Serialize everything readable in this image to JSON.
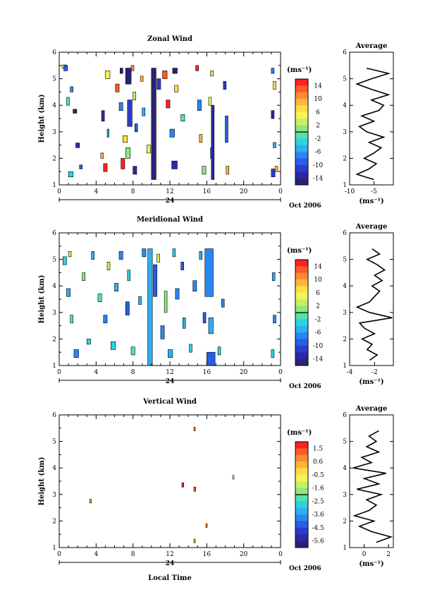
{
  "chart_data": [
    {
      "type": "heatmap",
      "title": "Zonal Wind",
      "ylabel": "Height (km)",
      "ylim": [
        1,
        6
      ],
      "yticks": [
        "1",
        "2",
        "3",
        "4",
        "5",
        "6"
      ],
      "xlim": [
        0,
        24
      ],
      "xticks": [
        "0",
        "4",
        "8",
        "12",
        "16",
        "20",
        "0"
      ],
      "date_marker": "24",
      "date_label": "Oct 2006",
      "colorbar": {
        "units": "(ms⁻¹)",
        "ticks": [
          "14",
          "10",
          "6",
          "2",
          "-2",
          "-6",
          "-10",
          "-14"
        ],
        "colors": [
          "#ff2020",
          "#ff5a28",
          "#ff8a30",
          "#ffb63a",
          "#ffde45",
          "#f4f455",
          "#c6f062",
          "#8ee87a",
          "#55e0b0",
          "#2fd2dc",
          "#2cb0f0",
          "#2a86f0",
          "#2a5ee6",
          "#2b3ccc",
          "#2a2aa8",
          "#2a2276"
        ]
      },
      "blocks": [
        {
          "x": 0.3,
          "y": 5.4,
          "w": 0.5,
          "h": 0.12,
          "c": "#f4f455"
        },
        {
          "x": 0.5,
          "y": 5.3,
          "w": 0.4,
          "h": 0.2,
          "c": "#2a5ee6"
        },
        {
          "x": 1.2,
          "y": 4.5,
          "w": 0.3,
          "h": 0.2,
          "c": "#2a86f0"
        },
        {
          "x": 1.5,
          "y": 3.7,
          "w": 0.4,
          "h": 0.15,
          "c": "#2a2276"
        },
        {
          "x": 0.8,
          "y": 4.0,
          "w": 0.3,
          "h": 0.3,
          "c": "#55e0b0"
        },
        {
          "x": 1.8,
          "y": 2.4,
          "w": 0.4,
          "h": 0.18,
          "c": "#2a2aa8"
        },
        {
          "x": 1.0,
          "y": 1.3,
          "w": 0.5,
          "h": 0.2,
          "c": "#2fd2dc"
        },
        {
          "x": 2.2,
          "y": 1.6,
          "w": 0.3,
          "h": 0.15,
          "c": "#2a5ee6"
        },
        {
          "x": 4.5,
          "y": 2.0,
          "w": 0.3,
          "h": 0.2,
          "c": "#ffb63a"
        },
        {
          "x": 4.8,
          "y": 1.5,
          "w": 0.4,
          "h": 0.3,
          "c": "#ff2020"
        },
        {
          "x": 5.0,
          "y": 5.0,
          "w": 0.5,
          "h": 0.3,
          "c": "#f4f455"
        },
        {
          "x": 4.6,
          "y": 3.4,
          "w": 0.3,
          "h": 0.4,
          "c": "#2a2aa8"
        },
        {
          "x": 5.2,
          "y": 2.8,
          "w": 0.2,
          "h": 0.3,
          "c": "#2cb0f0"
        },
        {
          "x": 6.1,
          "y": 4.5,
          "w": 0.4,
          "h": 0.3,
          "c": "#ff5a28"
        },
        {
          "x": 6.6,
          "y": 5.2,
          "w": 0.3,
          "h": 0.2,
          "c": "#2a2276"
        },
        {
          "x": 6.5,
          "y": 3.8,
          "w": 0.4,
          "h": 0.3,
          "c": "#2a86f0"
        },
        {
          "x": 6.9,
          "y": 2.6,
          "w": 0.5,
          "h": 0.25,
          "c": "#ffde45"
        },
        {
          "x": 6.7,
          "y": 1.6,
          "w": 0.4,
          "h": 0.4,
          "c": "#ff2020"
        },
        {
          "x": 7.2,
          "y": 4.8,
          "w": 0.6,
          "h": 0.6,
          "c": "#2a2276"
        },
        {
          "x": 7.4,
          "y": 3.2,
          "w": 0.5,
          "h": 1.0,
          "c": "#2b3ccc"
        },
        {
          "x": 7.2,
          "y": 2.0,
          "w": 0.5,
          "h": 0.4,
          "c": "#8ee87a"
        },
        {
          "x": 7.8,
          "y": 5.3,
          "w": 0.3,
          "h": 0.2,
          "c": "#ff8a30"
        },
        {
          "x": 8.0,
          "y": 4.2,
          "w": 0.3,
          "h": 0.3,
          "c": "#c6f062"
        },
        {
          "x": 8.2,
          "y": 3.0,
          "w": 0.3,
          "h": 0.3,
          "c": "#2a5ee6"
        },
        {
          "x": 8.0,
          "y": 1.4,
          "w": 0.4,
          "h": 0.3,
          "c": "#2a2aa8"
        },
        {
          "x": 8.8,
          "y": 4.9,
          "w": 0.3,
          "h": 0.2,
          "c": "#ffb63a"
        },
        {
          "x": 9.0,
          "y": 3.6,
          "w": 0.3,
          "h": 0.3,
          "c": "#2cb0f0"
        },
        {
          "x": 9.5,
          "y": 2.2,
          "w": 0.4,
          "h": 0.3,
          "c": "#f4f455"
        },
        {
          "x": 10.0,
          "y": 1.2,
          "w": 0.5,
          "h": 4.2,
          "c": "#2a2276"
        },
        {
          "x": 10.6,
          "y": 4.6,
          "w": 0.4,
          "h": 0.4,
          "c": "#2b3ccc"
        },
        {
          "x": 11.2,
          "y": 5.0,
          "w": 0.5,
          "h": 0.3,
          "c": "#ff5a28"
        },
        {
          "x": 11.6,
          "y": 3.9,
          "w": 0.4,
          "h": 0.3,
          "c": "#ff2020"
        },
        {
          "x": 12.0,
          "y": 2.8,
          "w": 0.5,
          "h": 0.3,
          "c": "#2a86f0"
        },
        {
          "x": 12.2,
          "y": 1.6,
          "w": 0.6,
          "h": 0.3,
          "c": "#2a2aa8"
        },
        {
          "x": 12.3,
          "y": 5.2,
          "w": 0.5,
          "h": 0.2,
          "c": "#2a2276"
        },
        {
          "x": 12.5,
          "y": 4.5,
          "w": 0.4,
          "h": 0.25,
          "c": "#ffde45"
        },
        {
          "x": 13.2,
          "y": 3.4,
          "w": 0.4,
          "h": 0.25,
          "c": "#55e0b0"
        },
        {
          "x": 14.8,
          "y": 5.3,
          "w": 0.3,
          "h": 0.2,
          "c": "#ff2020"
        },
        {
          "x": 15.0,
          "y": 3.8,
          "w": 0.4,
          "h": 0.4,
          "c": "#2a86f0"
        },
        {
          "x": 15.2,
          "y": 2.6,
          "w": 0.3,
          "h": 0.3,
          "c": "#ffb63a"
        },
        {
          "x": 15.5,
          "y": 1.4,
          "w": 0.4,
          "h": 0.3,
          "c": "#8ee87a"
        },
        {
          "x": 16.2,
          "y": 4.0,
          "w": 0.3,
          "h": 0.3,
          "c": "#f4f455"
        },
        {
          "x": 16.4,
          "y": 5.1,
          "w": 0.3,
          "h": 0.2,
          "c": "#c6f062"
        },
        {
          "x": 16.4,
          "y": 2.0,
          "w": 0.3,
          "h": 0.4,
          "c": "#2cb0f0"
        },
        {
          "x": 16.5,
          "y": 1.2,
          "w": 0.3,
          "h": 2.8,
          "c": "#2a2aa8"
        },
        {
          "x": 17.8,
          "y": 4.6,
          "w": 0.3,
          "h": 0.3,
          "c": "#2b3ccc"
        },
        {
          "x": 18.0,
          "y": 2.6,
          "w": 0.3,
          "h": 1.0,
          "c": "#2a5ee6"
        },
        {
          "x": 18.1,
          "y": 1.4,
          "w": 0.3,
          "h": 0.3,
          "c": "#ffb63a"
        },
        {
          "x": 23.0,
          "y": 5.2,
          "w": 0.3,
          "h": 0.2,
          "c": "#2a86f0"
        },
        {
          "x": 23.2,
          "y": 4.6,
          "w": 0.3,
          "h": 0.3,
          "c": "#ffde45"
        },
        {
          "x": 23.0,
          "y": 3.5,
          "w": 0.3,
          "h": 0.3,
          "c": "#2a2aa8"
        },
        {
          "x": 23.2,
          "y": 2.4,
          "w": 0.3,
          "h": 0.2,
          "c": "#2cb0f0"
        },
        {
          "x": 23.0,
          "y": 1.3,
          "w": 0.4,
          "h": 0.3,
          "c": "#2b3ccc"
        },
        {
          "x": 23.4,
          "y": 1.5,
          "w": 0.3,
          "h": 0.2,
          "c": "#ffb63a"
        }
      ],
      "profile": {
        "title": "Average",
        "xlabel": "(ms⁻¹)",
        "xlim": [
          -10,
          -1
        ],
        "xticks": [
          -10,
          -5
        ],
        "ylim": [
          1,
          6
        ],
        "yticks": [
          "1",
          "2",
          "3",
          "4",
          "5",
          "6"
        ],
        "heights": [
          1.2,
          1.4,
          1.6,
          1.8,
          2.0,
          2.2,
          2.4,
          2.6,
          2.8,
          3.0,
          3.2,
          3.4,
          3.6,
          3.8,
          4.0,
          4.2,
          4.4,
          4.6,
          4.8,
          5.0,
          5.2,
          5.4
        ],
        "values": [
          -5.0,
          -8.5,
          -6.0,
          -4.5,
          -7.0,
          -5.0,
          -3.5,
          -6.0,
          -3.0,
          -6.5,
          -8.0,
          -5.0,
          -7.5,
          -4.0,
          -3.0,
          -5.5,
          -2.0,
          -5.5,
          -8.5,
          -5.5,
          -2.0,
          -6.5
        ]
      }
    },
    {
      "type": "heatmap",
      "title": "Meridional Wind",
      "ylabel": "Height (km)",
      "ylim": [
        1,
        6
      ],
      "yticks": [
        "1",
        "2",
        "3",
        "4",
        "5",
        "6"
      ],
      "xlim": [
        0,
        24
      ],
      "xticks": [
        "0",
        "4",
        "8",
        "12",
        "16",
        "20",
        "0"
      ],
      "date_marker": "24",
      "date_label": "Oct 2006",
      "colorbar": {
        "units": "(ms⁻¹)",
        "ticks": [
          "14",
          "10",
          "6",
          "2",
          "-2",
          "-6",
          "-10",
          "-14"
        ],
        "colors": [
          "#ff2020",
          "#ff5a28",
          "#ff8a30",
          "#ffb63a",
          "#ffde45",
          "#f4f455",
          "#c6f062",
          "#8ee87a",
          "#55e0b0",
          "#2fd2dc",
          "#2cb0f0",
          "#2a86f0",
          "#2a5ee6",
          "#2b3ccc",
          "#2a2aa8",
          "#2a2276"
        ]
      },
      "blocks": [
        {
          "x": 0.4,
          "y": 4.8,
          "w": 0.4,
          "h": 0.3,
          "c": "#2fd2dc"
        },
        {
          "x": 1.0,
          "y": 5.1,
          "w": 0.3,
          "h": 0.2,
          "c": "#c6f062"
        },
        {
          "x": 0.8,
          "y": 3.6,
          "w": 0.4,
          "h": 0.3,
          "c": "#2cb0f0"
        },
        {
          "x": 1.2,
          "y": 2.6,
          "w": 0.3,
          "h": 0.3,
          "c": "#55e0b0"
        },
        {
          "x": 1.6,
          "y": 1.3,
          "w": 0.5,
          "h": 0.3,
          "c": "#2a86f0"
        },
        {
          "x": 2.5,
          "y": 4.2,
          "w": 0.3,
          "h": 0.3,
          "c": "#8ee87a"
        },
        {
          "x": 3.0,
          "y": 1.8,
          "w": 0.4,
          "h": 0.2,
          "c": "#2fd2dc"
        },
        {
          "x": 3.5,
          "y": 5.0,
          "w": 0.3,
          "h": 0.3,
          "c": "#2cb0f0"
        },
        {
          "x": 4.2,
          "y": 3.4,
          "w": 0.4,
          "h": 0.3,
          "c": "#55e0b0"
        },
        {
          "x": 4.8,
          "y": 2.6,
          "w": 0.4,
          "h": 0.3,
          "c": "#2a86f0"
        },
        {
          "x": 5.2,
          "y": 4.6,
          "w": 0.3,
          "h": 0.3,
          "c": "#c6f062"
        },
        {
          "x": 5.6,
          "y": 1.6,
          "w": 0.5,
          "h": 0.3,
          "c": "#2fd2dc"
        },
        {
          "x": 6.0,
          "y": 3.8,
          "w": 0.4,
          "h": 0.3,
          "c": "#2cb0f0"
        },
        {
          "x": 6.5,
          "y": 5.0,
          "w": 0.4,
          "h": 0.3,
          "c": "#2a86f0"
        },
        {
          "x": 7.2,
          "y": 2.9,
          "w": 0.4,
          "h": 0.5,
          "c": "#2a5ee6"
        },
        {
          "x": 7.4,
          "y": 4.2,
          "w": 0.3,
          "h": 0.4,
          "c": "#2fd2dc"
        },
        {
          "x": 7.8,
          "y": 1.4,
          "w": 0.4,
          "h": 0.3,
          "c": "#55e0b0"
        },
        {
          "x": 8.6,
          "y": 3.3,
          "w": 0.3,
          "h": 0.3,
          "c": "#2cb0f0"
        },
        {
          "x": 9.0,
          "y": 5.1,
          "w": 0.4,
          "h": 0.3,
          "c": "#2a86f0"
        },
        {
          "x": 9.6,
          "y": 1.0,
          "w": 0.5,
          "h": 4.4,
          "c": "#2cb0f0"
        },
        {
          "x": 10.2,
          "y": 3.6,
          "w": 0.4,
          "h": 1.2,
          "c": "#2a5ee6"
        },
        {
          "x": 10.6,
          "y": 4.9,
          "w": 0.3,
          "h": 0.3,
          "c": "#c6f062"
        },
        {
          "x": 11.0,
          "y": 2.0,
          "w": 0.4,
          "h": 0.5,
          "c": "#2a86f0"
        },
        {
          "x": 11.4,
          "y": 3.0,
          "w": 0.3,
          "h": 0.8,
          "c": "#8ee87a"
        },
        {
          "x": 11.8,
          "y": 1.3,
          "w": 0.5,
          "h": 0.3,
          "c": "#2cb0f0"
        },
        {
          "x": 12.3,
          "y": 5.1,
          "w": 0.3,
          "h": 0.3,
          "c": "#2fd2dc"
        },
        {
          "x": 12.6,
          "y": 3.5,
          "w": 0.4,
          "h": 0.4,
          "c": "#2a86f0"
        },
        {
          "x": 13.2,
          "y": 4.6,
          "w": 0.3,
          "h": 0.3,
          "c": "#2a5ee6"
        },
        {
          "x": 13.4,
          "y": 2.4,
          "w": 0.3,
          "h": 0.4,
          "c": "#2cb0f0"
        },
        {
          "x": 14.1,
          "y": 1.5,
          "w": 0.3,
          "h": 0.3,
          "c": "#2fd2dc"
        },
        {
          "x": 14.5,
          "y": 3.8,
          "w": 0.4,
          "h": 0.4,
          "c": "#2a86f0"
        },
        {
          "x": 15.2,
          "y": 5.0,
          "w": 0.3,
          "h": 0.3,
          "c": "#2cb0f0"
        },
        {
          "x": 15.6,
          "y": 2.6,
          "w": 0.3,
          "h": 0.4,
          "c": "#2a5ee6"
        },
        {
          "x": 16.0,
          "y": 1.0,
          "w": 0.9,
          "h": 0.5,
          "c": "#2a5ee6"
        },
        {
          "x": 15.8,
          "y": 3.6,
          "w": 0.9,
          "h": 1.8,
          "c": "#2a86f0"
        },
        {
          "x": 16.2,
          "y": 2.2,
          "w": 0.5,
          "h": 0.6,
          "c": "#2cb0f0"
        },
        {
          "x": 17.2,
          "y": 1.4,
          "w": 0.3,
          "h": 0.3,
          "c": "#2fd2dc"
        },
        {
          "x": 17.6,
          "y": 3.2,
          "w": 0.3,
          "h": 0.3,
          "c": "#2a86f0"
        },
        {
          "x": 23.1,
          "y": 4.2,
          "w": 0.3,
          "h": 0.3,
          "c": "#2cb0f0"
        },
        {
          "x": 23.2,
          "y": 2.6,
          "w": 0.3,
          "h": 0.3,
          "c": "#2a86f0"
        },
        {
          "x": 23.0,
          "y": 1.3,
          "w": 0.3,
          "h": 0.3,
          "c": "#2fd2dc"
        }
      ],
      "profile": {
        "title": "Average",
        "xlabel": "(ms⁻¹)",
        "xlim": [
          -4,
          -0.5
        ],
        "xticks": [
          -4,
          -2
        ],
        "ylim": [
          1,
          6
        ],
        "yticks": [
          "1",
          "2",
          "3",
          "4",
          "5",
          "6"
        ],
        "heights": [
          1.2,
          1.4,
          1.6,
          1.8,
          2.0,
          2.2,
          2.4,
          2.6,
          2.8,
          3.0,
          3.2,
          3.4,
          3.6,
          3.8,
          4.0,
          4.2,
          4.4,
          4.6,
          4.8,
          5.0,
          5.2,
          5.4
        ],
        "values": [
          -2.4,
          -1.8,
          -2.6,
          -2.2,
          -3.0,
          -2.0,
          -2.8,
          -3.2,
          -0.6,
          -2.4,
          -3.4,
          -2.4,
          -2.0,
          -1.6,
          -2.2,
          -1.4,
          -2.0,
          -1.2,
          -1.8,
          -2.6,
          -1.6,
          -2.2
        ]
      }
    },
    {
      "type": "heatmap",
      "title": "Vertical Wind",
      "ylabel": "Height (km)",
      "xlabel": "Local Time",
      "ylim": [
        1,
        6
      ],
      "yticks": [
        "1",
        "2",
        "3",
        "4",
        "5",
        "6"
      ],
      "xlim": [
        0,
        24
      ],
      "xticks": [
        "0",
        "4",
        "8",
        "12",
        "16",
        "20",
        "0"
      ],
      "date_marker": "24",
      "date_label": "Oct 2006",
      "colorbar": {
        "units": "(ms⁻¹)",
        "ticks": [
          "1.5",
          "0.6",
          "-0.5",
          "-1.6",
          "-2.5",
          "-3.6",
          "-4.5",
          "-5.6"
        ],
        "colors": [
          "#ff2020",
          "#ff5a28",
          "#ff8a30",
          "#ffb63a",
          "#ffde45",
          "#f4f455",
          "#c6f062",
          "#8ee87a",
          "#55e0b0",
          "#2fd2dc",
          "#2cb0f0",
          "#2a86f0",
          "#2a5ee6",
          "#2b3ccc",
          "#2a2aa8",
          "#2a2276"
        ]
      },
      "blocks": [
        {
          "x": 3.3,
          "y": 2.68,
          "w": 0.2,
          "h": 0.14,
          "c": "#ffb63a"
        },
        {
          "x": 13.3,
          "y": 3.28,
          "w": 0.2,
          "h": 0.16,
          "c": "#ff2020"
        },
        {
          "x": 14.6,
          "y": 3.12,
          "w": 0.2,
          "h": 0.16,
          "c": "#ff5a28"
        },
        {
          "x": 14.6,
          "y": 5.4,
          "w": 0.15,
          "h": 0.14,
          "c": "#ff8a30"
        },
        {
          "x": 14.6,
          "y": 1.18,
          "w": 0.15,
          "h": 0.14,
          "c": "#ffb63a"
        },
        {
          "x": 15.9,
          "y": 1.76,
          "w": 0.15,
          "h": 0.14,
          "c": "#ff8a30"
        },
        {
          "x": 18.8,
          "y": 3.58,
          "w": 0.15,
          "h": 0.14,
          "c": "#f4f455"
        }
      ],
      "profile": {
        "title": "Average",
        "xlabel": "(ms⁻¹)",
        "xlim": [
          -1.2,
          2.4
        ],
        "xticks": [
          0,
          2
        ],
        "ylim": [
          1,
          6
        ],
        "yticks": [
          "1",
          "2",
          "3",
          "4",
          "5",
          "6"
        ],
        "heights": [
          1.2,
          1.4,
          1.6,
          1.8,
          2.0,
          2.2,
          2.4,
          2.6,
          2.8,
          3.0,
          3.2,
          3.4,
          3.6,
          3.8,
          4.0,
          4.2,
          4.4,
          4.6,
          4.8,
          5.0,
          5.2,
          5.4
        ],
        "values": [
          1.0,
          2.2,
          0.6,
          -0.4,
          0.8,
          -0.8,
          0.4,
          1.0,
          0.2,
          1.4,
          -0.6,
          1.2,
          0.0,
          1.8,
          -0.9,
          0.6,
          -0.2,
          1.2,
          0.2,
          1.0,
          0.4,
          1.2
        ]
      }
    }
  ]
}
